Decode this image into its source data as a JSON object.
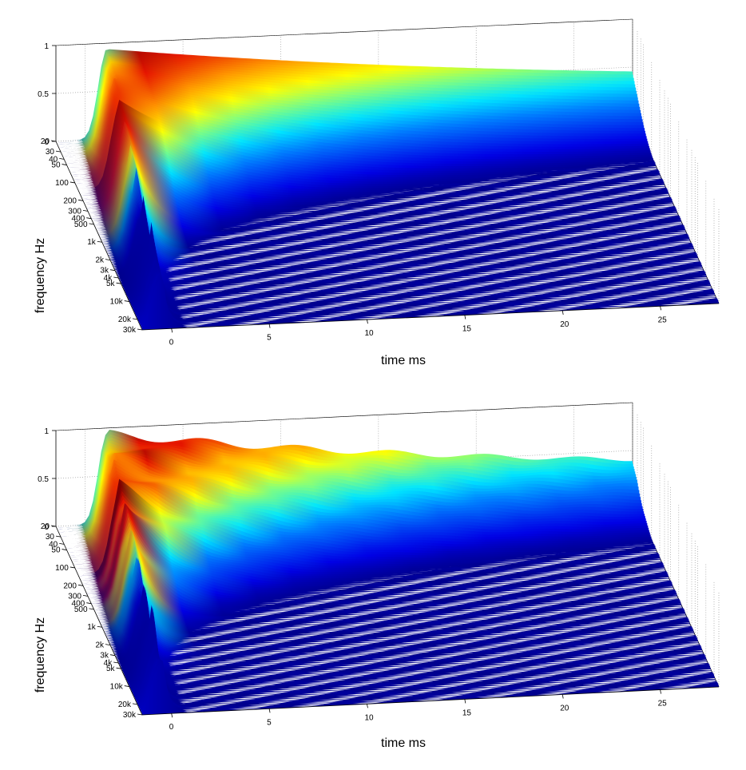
{
  "chart_data": [
    {
      "type": "waterfall-3d-surface",
      "xlabel": "time   ms",
      "ylabel": "frequency   Hz",
      "zlabel": "",
      "x_ticks": [
        "0",
        "5",
        "10",
        "15",
        "20",
        "25"
      ],
      "x_range": [
        -1.5,
        28
      ],
      "y_ticks": [
        "20",
        "30",
        "40",
        "50",
        "100",
        "200",
        "300",
        "400",
        "500",
        "1k",
        "2k",
        "3k",
        "4k",
        "5k",
        "10k",
        "20k",
        "30k"
      ],
      "y_range_hz": [
        20,
        30000
      ],
      "z_ticks": [
        "0",
        "0.5",
        "1"
      ],
      "z_range": [
        0,
        1
      ],
      "colormap": "jet",
      "grid": true,
      "decay": "smooth"
    },
    {
      "type": "waterfall-3d-surface",
      "xlabel": "time   ms",
      "ylabel": "frequency   Hz",
      "zlabel": "",
      "x_ticks": [
        "0",
        "5",
        "10",
        "15",
        "20",
        "25"
      ],
      "x_range": [
        -1.5,
        28
      ],
      "y_ticks": [
        "20",
        "30",
        "40",
        "50",
        "100",
        "200",
        "300",
        "400",
        "500",
        "1k",
        "2k",
        "3k",
        "4k",
        "5k",
        "10k",
        "20k",
        "30k"
      ],
      "y_range_hz": [
        20,
        30000
      ],
      "z_ticks": [
        "0",
        "0.5",
        "1"
      ],
      "z_range": [
        0,
        1
      ],
      "colormap": "jet",
      "grid": true,
      "decay": "rippled"
    }
  ]
}
